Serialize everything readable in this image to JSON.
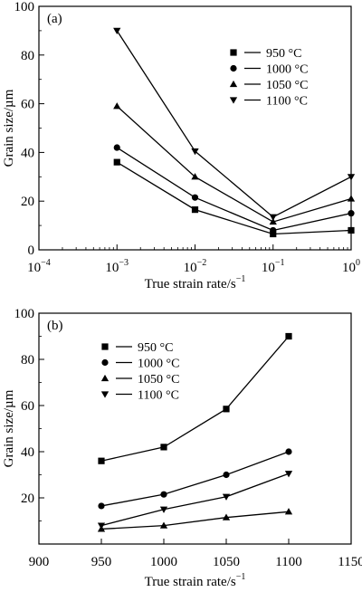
{
  "chart_data": [
    {
      "type": "line",
      "panel_label": "(a)",
      "xlabel_main": "True strain rate/s",
      "xlabel_sup": "−1",
      "ylabel": "Grain size/µm",
      "x_scale": "log",
      "xlim": [
        0.0001,
        1
      ],
      "ylim": [
        0,
        100
      ],
      "x_ticks": [
        {
          "value": 0.0001,
          "base": "10",
          "exp": "−4"
        },
        {
          "value": 0.001,
          "base": "10",
          "exp": "−3"
        },
        {
          "value": 0.01,
          "base": "10",
          "exp": "−2"
        },
        {
          "value": 0.1,
          "base": "10",
          "exp": "−1"
        },
        {
          "value": 1,
          "base": "10",
          "exp": "0"
        }
      ],
      "y_ticks": [
        "0",
        "20",
        "40",
        "60",
        "80",
        "100"
      ],
      "legend_position": "right",
      "x": [
        0.001,
        0.01,
        0.1,
        1
      ],
      "series": [
        {
          "name": "950 °C",
          "marker": "square",
          "values": [
            36,
            16.5,
            6.5,
            8
          ]
        },
        {
          "name": "1000 °C",
          "marker": "circle",
          "values": [
            42,
            21.5,
            8,
            15
          ]
        },
        {
          "name": "1050 °C",
          "marker": "triangle-up",
          "values": [
            59,
            30,
            11.5,
            21
          ]
        },
        {
          "name": "1100 °C",
          "marker": "triangle-down",
          "values": [
            90,
            40.5,
            13.5,
            30
          ]
        }
      ]
    },
    {
      "type": "line",
      "panel_label": "(b)",
      "xlabel_main": "True strain rate/s",
      "xlabel_sup": "−1",
      "ylabel": "Grain size/µm",
      "x_scale": "categorical",
      "xlim": [
        900,
        1150
      ],
      "ylim": [
        0,
        100
      ],
      "x_ticks": [
        "900",
        "950",
        "1000",
        "1050",
        "1100",
        "1150"
      ],
      "y_ticks": [
        "20",
        "40",
        "60",
        "80",
        "100"
      ],
      "categories": [
        "950",
        "1000",
        "1050",
        "1100"
      ],
      "legend_position": "top-left",
      "series": [
        {
          "name": "950 °C",
          "marker": "square",
          "values": [
            36,
            42,
            58.5,
            90
          ]
        },
        {
          "name": "1000 °C",
          "marker": "circle",
          "values": [
            16.5,
            21.5,
            30,
            40
          ]
        },
        {
          "name": "1050 °C",
          "marker": "triangle-up",
          "values": [
            6.5,
            8,
            11.5,
            14
          ]
        },
        {
          "name": "1100 °C",
          "marker": "triangle-down",
          "values": [
            8,
            15,
            20.5,
            30.5
          ]
        }
      ]
    }
  ]
}
